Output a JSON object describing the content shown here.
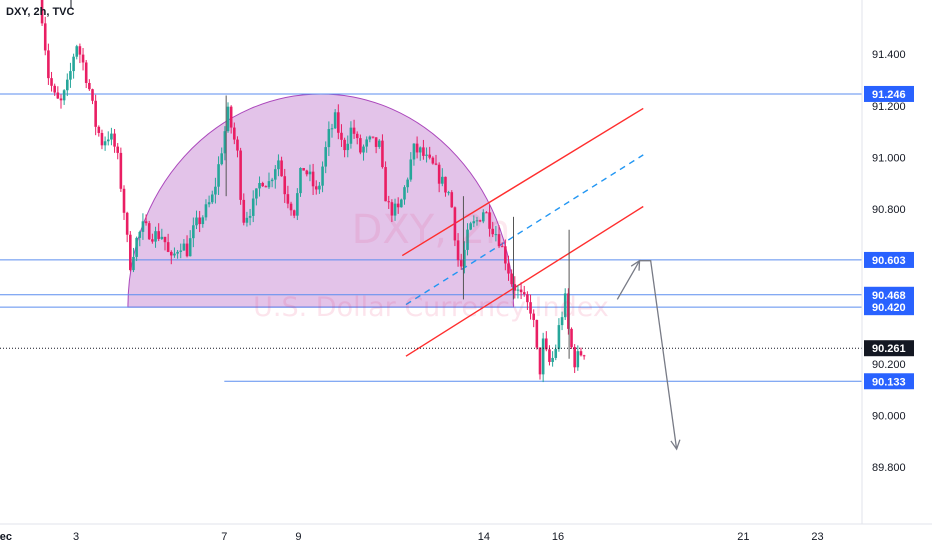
{
  "symbol": "DXY, 2h, TVC",
  "watermark": {
    "main": "DXY, 2h",
    "sub": "U.S. Dollar Currency Index"
  },
  "colors": {
    "bull": "#26a69a",
    "bear": "#e91e63",
    "level_line": "#5b8def",
    "channel": "#ff2e2e",
    "midline": "#2196f3",
    "arrow": "#787b86",
    "dome_fill": "rgba(186,104,200,0.40)",
    "dome_stroke": "#ab47bc",
    "badge_blue": "#2962ff",
    "badge_current": "#131722"
  },
  "chart_data": {
    "type": "candlestick",
    "title": "DXY, 2h, TVC",
    "xlabel": "",
    "ylabel": "",
    "x_ticks": [
      "Dec",
      "3",
      "7",
      "9",
      "14",
      "16",
      "21",
      "23"
    ],
    "x_tick_days": [
      1,
      3,
      7,
      9,
      14,
      16,
      21,
      23
    ],
    "y_ticks": [
      91.4,
      91.2,
      91.0,
      90.8,
      90.2,
      90.0,
      89.8
    ],
    "y_tick_labels": [
      "91.400",
      "91.200",
      "91.000",
      "90.800",
      "90.200",
      "90.000",
      "89.800"
    ],
    "xlim": [
      0.95,
      24.2
    ],
    "ylim": [
      89.58,
      91.61
    ],
    "grid": false,
    "levels": [
      {
        "value": 91.246,
        "label": "91.246",
        "from_day": 0.3
      },
      {
        "value": 90.603,
        "label": "90.603",
        "from_day": 0.3
      },
      {
        "value": 90.468,
        "label": "90.468",
        "from_day": 0.3
      },
      {
        "value": 90.42,
        "label": "90.420",
        "from_day": 0.3
      },
      {
        "value": 90.133,
        "label": "90.133",
        "from_day": 7.0
      }
    ],
    "current_price": {
      "value": 90.261,
      "label": "90.261"
    },
    "pattern_dome": {
      "start": [
        4.4,
        90.42
      ],
      "peak": [
        9.6,
        91.246
      ],
      "end": [
        14.8,
        90.42
      ]
    },
    "channel_upper": {
      "from": [
        11.8,
        90.62
      ],
      "to": [
        18.3,
        91.19
      ]
    },
    "channel_lower": {
      "from": [
        11.9,
        90.23
      ],
      "to": [
        18.3,
        90.81
      ]
    },
    "channel_mid": {
      "from": [
        11.9,
        90.43
      ],
      "to": [
        18.3,
        91.01
      ]
    },
    "projection": [
      [
        17.6,
        90.45
      ],
      [
        18.2,
        90.6
      ],
      [
        18.5,
        90.6
      ],
      [
        19.2,
        89.87
      ]
    ],
    "price_path": [
      [
        2.0,
        91.66
      ],
      [
        2.1,
        91.53
      ],
      [
        2.25,
        91.32
      ],
      [
        2.45,
        91.22
      ],
      [
        2.6,
        91.21
      ],
      [
        2.8,
        91.29
      ],
      [
        3.0,
        91.45
      ],
      [
        3.2,
        91.36
      ],
      [
        3.4,
        91.24
      ],
      [
        3.5,
        91.14
      ],
      [
        3.7,
        91.06
      ],
      [
        3.9,
        91.09
      ],
      [
        4.1,
        91.02
      ],
      [
        4.3,
        90.79
      ],
      [
        4.45,
        90.58
      ],
      [
        4.6,
        90.67
      ],
      [
        4.8,
        90.73
      ],
      [
        5.1,
        90.7
      ],
      [
        5.35,
        90.7
      ],
      [
        5.55,
        90.59
      ],
      [
        5.8,
        90.67
      ],
      [
        6.0,
        90.64
      ],
      [
        6.2,
        90.73
      ],
      [
        6.45,
        90.78
      ],
      [
        6.7,
        90.85
      ],
      [
        7.0,
        91.09
      ],
      [
        7.1,
        91.17
      ],
      [
        7.35,
        91.02
      ],
      [
        7.5,
        90.76
      ],
      [
        7.8,
        90.82
      ],
      [
        8.0,
        90.92
      ],
      [
        8.2,
        90.9
      ],
      [
        8.45,
        91.0
      ],
      [
        8.65,
        90.86
      ],
      [
        8.9,
        90.79
      ],
      [
        9.1,
        90.97
      ],
      [
        9.35,
        90.91
      ],
      [
        9.5,
        90.85
      ],
      [
        9.8,
        91.08
      ],
      [
        10.0,
        91.15
      ],
      [
        10.2,
        91.03
      ],
      [
        10.45,
        91.12
      ],
      [
        10.65,
        91.02
      ],
      [
        10.9,
        91.06
      ],
      [
        11.2,
        91.04
      ],
      [
        11.3,
        90.88
      ],
      [
        11.45,
        90.8
      ],
      [
        11.7,
        90.79
      ],
      [
        11.9,
        90.9
      ],
      [
        12.1,
        91.03
      ],
      [
        12.3,
        91.02
      ],
      [
        12.5,
        90.98
      ],
      [
        12.65,
        90.96
      ],
      [
        12.85,
        90.91
      ],
      [
        13.1,
        90.85
      ],
      [
        13.35,
        90.55
      ],
      [
        13.6,
        90.72
      ],
      [
        13.8,
        90.75
      ],
      [
        14.0,
        90.8
      ],
      [
        14.2,
        90.74
      ],
      [
        14.4,
        90.69
      ],
      [
        14.6,
        90.6
      ],
      [
        14.75,
        90.52
      ],
      [
        14.95,
        90.47
      ],
      [
        15.15,
        90.43
      ],
      [
        15.3,
        90.41
      ],
      [
        15.4,
        90.28
      ],
      [
        15.5,
        90.16
      ],
      [
        15.6,
        90.28
      ],
      [
        15.75,
        90.2
      ],
      [
        15.9,
        90.23
      ],
      [
        16.05,
        90.36
      ],
      [
        16.2,
        90.45
      ],
      [
        16.3,
        90.3
      ],
      [
        16.45,
        90.21
      ],
      [
        16.6,
        90.24
      ],
      [
        16.75,
        90.26
      ]
    ]
  }
}
